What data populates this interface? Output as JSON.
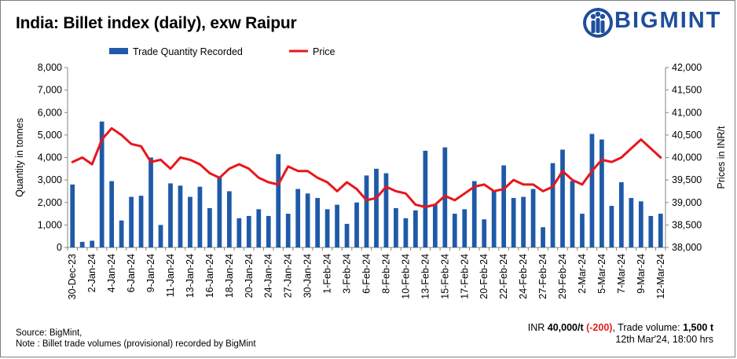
{
  "header": {
    "title": "India: Billet index (daily), exw Raipur",
    "brand": "BIGMINT"
  },
  "footer": {
    "source": "Source: BigMint,",
    "note": "Note : Billet trade volumes (provisional) recorded by BigMint"
  },
  "summary": {
    "prefix": "INR ",
    "price": "40,000/t",
    "change": "(-200)",
    "volume_label": ", Trade volume: ",
    "volume": "1,500 t",
    "timestamp": "12th Mar'24, 18:00 hrs"
  },
  "colors": {
    "bars": "#1f5aa8",
    "line": "#e8161b",
    "brand": "#1f4e9c"
  },
  "chart_data": {
    "type": "bar+line",
    "ylabel_left": "Quantity in tonnes",
    "ylabel_right": "Prices in INR/t",
    "ylim_left": [
      0,
      8000
    ],
    "yticks_left": [
      0,
      1000,
      2000,
      3000,
      4000,
      5000,
      6000,
      7000,
      8000
    ],
    "ytick_labels_left": [
      "0",
      "1,000",
      "2,000",
      "3,000",
      "4,000",
      "5,000",
      "6,000",
      "7,000",
      "8,000"
    ],
    "ylim_right": [
      38000,
      42000
    ],
    "yticks_right": [
      38000,
      38500,
      39000,
      39500,
      40000,
      40500,
      41000,
      41500,
      42000
    ],
    "ytick_labels_right": [
      "38,000",
      "38,500",
      "39,000",
      "39,500",
      "40,000",
      "40,500",
      "41,000",
      "41,500",
      "42,000"
    ],
    "tick_labels": [
      {
        "index": 0,
        "label": "30-Dec-23"
      },
      {
        "index": 2,
        "label": "2-Jan-24"
      },
      {
        "index": 4,
        "label": "4-Jan-24"
      },
      {
        "index": 6,
        "label": "6-Jan-24"
      },
      {
        "index": 8,
        "label": "9-Jan-24"
      },
      {
        "index": 10,
        "label": "11-Jan-24"
      },
      {
        "index": 12,
        "label": "13-Jan-24"
      },
      {
        "index": 14,
        "label": "16-Jan-24"
      },
      {
        "index": 16,
        "label": "18-Jan-24"
      },
      {
        "index": 18,
        "label": "20-Jan-24"
      },
      {
        "index": 20,
        "label": "24-Jan-24"
      },
      {
        "index": 22,
        "label": "27-Jan-24"
      },
      {
        "index": 24,
        "label": "30-Jan-24"
      },
      {
        "index": 26,
        "label": "1-Feb-24"
      },
      {
        "index": 28,
        "label": "3-Feb-24"
      },
      {
        "index": 30,
        "label": "6-Feb-24"
      },
      {
        "index": 32,
        "label": "8-Feb-24"
      },
      {
        "index": 34,
        "label": "10-Feb-24"
      },
      {
        "index": 36,
        "label": "13-Feb-24"
      },
      {
        "index": 38,
        "label": "15-Feb-24"
      },
      {
        "index": 40,
        "label": "17-Feb-24"
      },
      {
        "index": 42,
        "label": "20-Feb-24"
      },
      {
        "index": 44,
        "label": "22-Feb-24"
      },
      {
        "index": 46,
        "label": "24-Feb-24"
      },
      {
        "index": 48,
        "label": "27-Feb-24"
      },
      {
        "index": 50,
        "label": "29-Feb-24"
      },
      {
        "index": 52,
        "label": "2-Mar-24"
      },
      {
        "index": 54,
        "label": "5-Mar-24"
      },
      {
        "index": 56,
        "label": "7-Mar-24"
      },
      {
        "index": 58,
        "label": "9-Mar-24"
      },
      {
        "index": 60,
        "label": "12-Mar-24"
      }
    ],
    "series": [
      {
        "name": "Trade Quantity Recorded",
        "type": "bar",
        "axis": "left",
        "values": [
          2800,
          250,
          300,
          5600,
          2950,
          1200,
          2250,
          2300,
          4000,
          1000,
          2850,
          2750,
          2250,
          2700,
          1750,
          3100,
          2500,
          1300,
          1400,
          1700,
          1400,
          4150,
          1500,
          2600,
          2400,
          2200,
          1700,
          1900,
          1050,
          2000,
          3200,
          3500,
          3300,
          1750,
          1300,
          1650,
          4300,
          1900,
          4450,
          1500,
          1700,
          2950,
          1250,
          2500,
          3650,
          2200,
          2250,
          2600,
          900,
          3750,
          4350,
          2950,
          1500,
          5050,
          4800,
          1850,
          2900,
          2200,
          2050,
          1400,
          1500
        ]
      },
      {
        "name": "Price",
        "type": "line",
        "axis": "right",
        "values": [
          39900,
          40000,
          39850,
          40400,
          40650,
          40500,
          40300,
          40250,
          39900,
          39950,
          39750,
          40000,
          39950,
          39850,
          39650,
          39550,
          39750,
          39850,
          39750,
          39550,
          39450,
          39400,
          39800,
          39700,
          39700,
          39550,
          39450,
          39250,
          39450,
          39300,
          39050,
          39100,
          39350,
          39250,
          39200,
          38950,
          38900,
          38950,
          39150,
          39050,
          39200,
          39350,
          39400,
          39250,
          39300,
          39500,
          39400,
          39400,
          39250,
          39350,
          39700,
          39500,
          39400,
          39700,
          39950,
          39900,
          40000,
          40200,
          40400,
          40200,
          40000
        ]
      }
    ]
  }
}
